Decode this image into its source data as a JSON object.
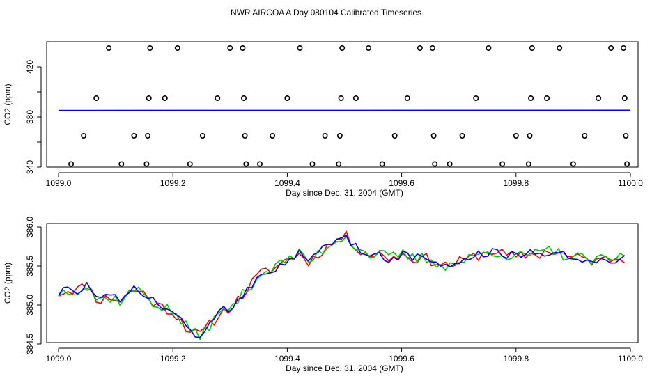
{
  "figure_title": "NWR AIRCOA A  Day 080104  Calibrated Timeseries",
  "colors": {
    "red": "#ff0000",
    "green": "#00cc00",
    "blue": "#0000ff",
    "points": "#000000"
  },
  "chart_data": [
    {
      "type": "scatter",
      "xlabel": "Day since Dec. 31, 2004 (GMT)",
      "ylabel": "CO2 (ppm)",
      "xlim": [
        1099.0,
        1100.0
      ],
      "ylim": [
        340,
        440
      ],
      "x_ticks": [
        1099.0,
        1099.2,
        1099.4,
        1099.6,
        1099.8,
        1100.0
      ],
      "x_tick_labels": [
        "1099.0",
        "1099.2",
        "1099.4",
        "1099.6",
        "1099.8",
        "1100.0"
      ],
      "y_ticks": [
        340,
        360,
        380,
        400,
        420
      ],
      "y_tick_labels": [
        "340",
        "380",
        "420"
      ],
      "y_label_ticks": [
        340,
        380,
        420
      ],
      "points": [
        [
          1099.022,
          342.5
        ],
        [
          1099.044,
          365
        ],
        [
          1099.066,
          395
        ],
        [
          1099.088,
          435
        ],
        [
          1099.11,
          342.5
        ],
        [
          1099.132,
          365
        ],
        [
          1099.154,
          342.5
        ],
        [
          1099.156,
          365
        ],
        [
          1099.158,
          395
        ],
        [
          1099.16,
          435
        ],
        [
          1099.186,
          395
        ],
        [
          1099.208,
          435
        ],
        [
          1099.23,
          342.5
        ],
        [
          1099.252,
          365
        ],
        [
          1099.278,
          395
        ],
        [
          1099.3,
          435
        ],
        [
          1099.322,
          435
        ],
        [
          1099.324,
          395
        ],
        [
          1099.326,
          365
        ],
        [
          1099.328,
          342.5
        ],
        [
          1099.352,
          342.5
        ],
        [
          1099.374,
          365
        ],
        [
          1099.4,
          395
        ],
        [
          1099.422,
          435
        ],
        [
          1099.444,
          342.5
        ],
        [
          1099.466,
          365
        ],
        [
          1099.49,
          342.5
        ],
        [
          1099.492,
          365
        ],
        [
          1099.494,
          395
        ],
        [
          1099.496,
          435
        ],
        [
          1099.52,
          395
        ],
        [
          1099.542,
          435
        ],
        [
          1099.566,
          342.5
        ],
        [
          1099.588,
          365
        ],
        [
          1099.61,
          395
        ],
        [
          1099.632,
          435
        ],
        [
          1099.654,
          435
        ],
        [
          1099.656,
          365
        ],
        [
          1099.658,
          342.5
        ],
        [
          1099.684,
          342.5
        ],
        [
          1099.706,
          365
        ],
        [
          1099.73,
          395
        ],
        [
          1099.752,
          435
        ],
        [
          1099.776,
          342.5
        ],
        [
          1099.8,
          365
        ],
        [
          1099.822,
          342.5
        ],
        [
          1099.824,
          365
        ],
        [
          1099.826,
          395
        ],
        [
          1099.828,
          435
        ],
        [
          1099.854,
          395
        ],
        [
          1099.876,
          435
        ],
        [
          1099.9,
          342.5
        ],
        [
          1099.92,
          365
        ],
        [
          1099.944,
          395
        ],
        [
          1099.966,
          435
        ],
        [
          1099.988,
          435
        ],
        [
          1099.99,
          395
        ],
        [
          1099.992,
          365
        ],
        [
          1099.994,
          342.5
        ]
      ],
      "series": [
        {
          "name": "red",
          "x": [
            1099.0,
            1100.0
          ],
          "values": [
            385.2,
            385.4
          ]
        },
        {
          "name": "green",
          "x": [
            1099.0,
            1100.0
          ],
          "values": [
            385.2,
            385.4
          ]
        },
        {
          "name": "blue",
          "x": [
            1099.0,
            1100.0
          ],
          "values": [
            385.2,
            385.4
          ]
        }
      ]
    },
    {
      "type": "line",
      "xlabel": "Day since Dec. 31, 2004 (GMT)",
      "ylabel": "CO2 (ppm)",
      "xlim": [
        1099.0,
        1100.0
      ],
      "ylim": [
        384.5,
        386.0
      ],
      "x_ticks": [
        1099.0,
        1099.2,
        1099.4,
        1099.6,
        1099.8,
        1100.0
      ],
      "x_tick_labels": [
        "1099.0",
        "1099.2",
        "1099.4",
        "1099.6",
        "1099.8",
        "1100.0"
      ],
      "y_ticks": [
        384.5,
        385.0,
        385.5,
        386.0
      ],
      "y_tick_labels": [
        "384.5",
        "385.0",
        "385.5",
        "386.0"
      ],
      "anchors": [
        [
          1099.0,
          385.15
        ],
        [
          1099.02,
          385.2
        ],
        [
          1099.035,
          385.2
        ],
        [
          1099.05,
          385.25
        ],
        [
          1099.07,
          385.05
        ],
        [
          1099.09,
          385.1
        ],
        [
          1099.11,
          385.05
        ],
        [
          1099.13,
          385.2
        ],
        [
          1099.15,
          385.15
        ],
        [
          1099.17,
          385.0
        ],
        [
          1099.19,
          384.95
        ],
        [
          1099.21,
          384.85
        ],
        [
          1099.225,
          384.7
        ],
        [
          1099.245,
          384.6
        ],
        [
          1099.265,
          384.75
        ],
        [
          1099.285,
          384.9
        ],
        [
          1099.305,
          385.0
        ],
        [
          1099.325,
          385.15
        ],
        [
          1099.345,
          385.35
        ],
        [
          1099.365,
          385.45
        ],
        [
          1099.385,
          385.5
        ],
        [
          1099.4,
          385.6
        ],
        [
          1099.42,
          385.65
        ],
        [
          1099.44,
          385.55
        ],
        [
          1099.46,
          385.7
        ],
        [
          1099.48,
          385.8
        ],
        [
          1099.5,
          385.9
        ],
        [
          1099.52,
          385.75
        ],
        [
          1099.54,
          385.65
        ],
        [
          1099.56,
          385.65
        ],
        [
          1099.58,
          385.6
        ],
        [
          1099.6,
          385.65
        ],
        [
          1099.62,
          385.6
        ],
        [
          1099.64,
          385.6
        ],
        [
          1099.66,
          385.55
        ],
        [
          1099.68,
          385.5
        ],
        [
          1099.7,
          385.55
        ],
        [
          1099.72,
          385.6
        ],
        [
          1099.74,
          385.65
        ],
        [
          1099.76,
          385.7
        ],
        [
          1099.78,
          385.65
        ],
        [
          1099.8,
          385.6
        ],
        [
          1099.82,
          385.65
        ],
        [
          1099.84,
          385.65
        ],
        [
          1099.86,
          385.7
        ],
        [
          1099.88,
          385.65
        ],
        [
          1099.9,
          385.6
        ],
        [
          1099.92,
          385.6
        ],
        [
          1099.94,
          385.55
        ],
        [
          1099.96,
          385.6
        ],
        [
          1099.99,
          385.6
        ]
      ],
      "series": [
        {
          "name": "red",
          "seed": 11,
          "noise": 0.07
        },
        {
          "name": "green",
          "seed": 37,
          "noise": 0.075
        },
        {
          "name": "blue",
          "seed": 73,
          "noise": 0.065
        }
      ],
      "series_x_end": 1099.99,
      "series_points": 120
    }
  ]
}
